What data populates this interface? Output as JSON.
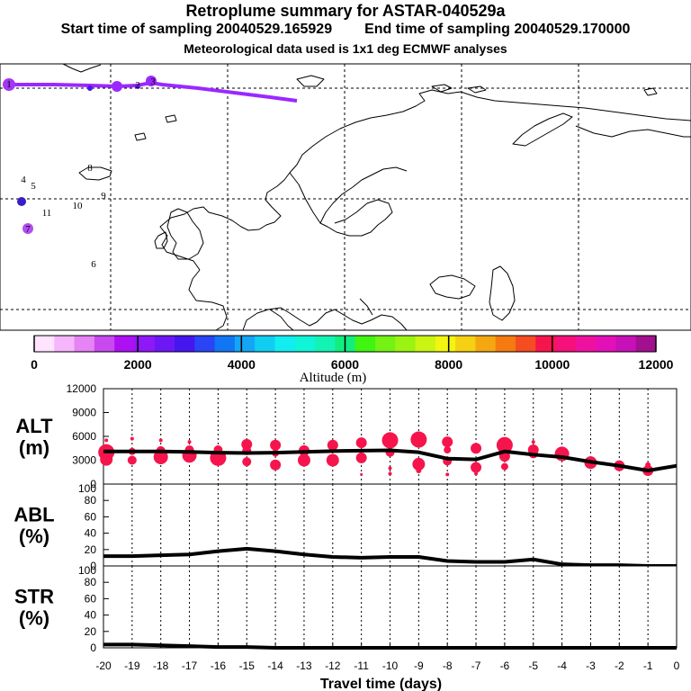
{
  "header": {
    "title": "Retroplume summary for ASTAR-040529a",
    "start_label": "Start time of sampling 20040529.165929",
    "end_label": "End time of sampling 20040529.170000",
    "met_label": "Meteorological data used is 1x1 deg ECMWF analyses"
  },
  "map": {
    "cluster_labels": [
      "4",
      "5",
      "11",
      "10",
      "9",
      "8",
      "6",
      "7",
      "1",
      "2",
      "3"
    ],
    "track_color": "#9a28ff",
    "ocean_color": "#ffffff",
    "coast_color": "#000000"
  },
  "colorbar": {
    "colors": [
      "#ffe3ff",
      "#f5b6fb",
      "#e683f5",
      "#c949f0",
      "#ad10f3",
      "#8f18f7",
      "#6d17f5",
      "#4616ef",
      "#2a45f5",
      "#1176f3",
      "#14a6f5",
      "#10cdf2",
      "#12edf0",
      "#10f5d7",
      "#13f3b3",
      "#11ee80",
      "#3ff511",
      "#73f213",
      "#9bf311",
      "#c8f511",
      "#f1f511",
      "#f5d111",
      "#f5a711",
      "#f57b11",
      "#f54c22",
      "#f5154c",
      "#f5107a",
      "#f010a0",
      "#e310b8",
      "#c810b8",
      "#a2108f"
    ],
    "tick_labels": [
      "0",
      "2000",
      "4000",
      "6000",
      "8000",
      "10000",
      "12000"
    ],
    "axis_label": "Altitude (m)"
  },
  "chart_data": [
    {
      "type": "line",
      "id": "alt",
      "ylabel": "ALT\n(m)",
      "ylabel_lines": [
        "ALT",
        "(m)"
      ],
      "ylim": [
        0,
        12000
      ],
      "yticks": [
        0,
        3000,
        6000,
        9000,
        12000
      ],
      "x": [
        -20,
        -19,
        -18,
        -17,
        -16,
        -15,
        -14,
        -13,
        -12,
        -11,
        -10,
        -9,
        -8,
        -7,
        -6,
        -5,
        -4,
        -3,
        -2,
        -1,
        0
      ],
      "series": [
        {
          "name": "mean altitude",
          "color": "#000000",
          "values": [
            4100,
            4100,
            4100,
            4050,
            3950,
            3900,
            3950,
            4050,
            4150,
            4200,
            4250,
            4000,
            3200,
            3100,
            4100,
            3700,
            3400,
            2800,
            2300,
            1700,
            2300
          ]
        }
      ],
      "scatter": {
        "name": "cluster altitudes",
        "color": "#f5154c",
        "points": [
          {
            "x": -19.9,
            "y": 4000,
            "s": 9
          },
          {
            "x": -19.9,
            "y": 3100,
            "s": 7
          },
          {
            "x": -19.9,
            "y": 5500,
            "s": 2
          },
          {
            "x": -19.0,
            "y": 4100,
            "s": 4
          },
          {
            "x": -19.0,
            "y": 3000,
            "s": 5
          },
          {
            "x": -19.0,
            "y": 5700,
            "s": 2
          },
          {
            "x": -18.0,
            "y": 3400,
            "s": 8
          },
          {
            "x": -18.0,
            "y": 4200,
            "s": 5
          },
          {
            "x": -18.0,
            "y": 5500,
            "s": 2
          },
          {
            "x": -17.0,
            "y": 3600,
            "s": 8
          },
          {
            "x": -17.0,
            "y": 4300,
            "s": 5
          },
          {
            "x": -17.0,
            "y": 5300,
            "s": 2
          },
          {
            "x": -16.0,
            "y": 3300,
            "s": 9
          },
          {
            "x": -16.0,
            "y": 4300,
            "s": 5
          },
          {
            "x": -15.0,
            "y": 5000,
            "s": 6
          },
          {
            "x": -15.0,
            "y": 4200,
            "s": 5
          },
          {
            "x": -15.0,
            "y": 2800,
            "s": 5
          },
          {
            "x": -14.0,
            "y": 4900,
            "s": 6
          },
          {
            "x": -14.0,
            "y": 2400,
            "s": 6
          },
          {
            "x": -14.0,
            "y": 3900,
            "s": 4
          },
          {
            "x": -13.0,
            "y": 4200,
            "s": 6
          },
          {
            "x": -13.0,
            "y": 3000,
            "s": 7
          },
          {
            "x": -12.0,
            "y": 4900,
            "s": 6
          },
          {
            "x": -12.0,
            "y": 3000,
            "s": 7
          },
          {
            "x": -11.0,
            "y": 5200,
            "s": 6
          },
          {
            "x": -11.0,
            "y": 3300,
            "s": 6
          },
          {
            "x": -11.0,
            "y": 1200,
            "s": 1.5
          },
          {
            "x": -10.0,
            "y": 5500,
            "s": 9
          },
          {
            "x": -10.0,
            "y": 4000,
            "s": 5
          },
          {
            "x": -10.0,
            "y": 2000,
            "s": 2
          },
          {
            "x": -10.0,
            "y": 1300,
            "s": 2
          },
          {
            "x": -9.0,
            "y": 5600,
            "s": 9
          },
          {
            "x": -9.0,
            "y": 2500,
            "s": 7
          },
          {
            "x": -9.0,
            "y": 1700,
            "s": 3
          },
          {
            "x": -8.0,
            "y": 5300,
            "s": 6
          },
          {
            "x": -8.0,
            "y": 4300,
            "s": 4
          },
          {
            "x": -8.0,
            "y": 2900,
            "s": 5
          },
          {
            "x": -8.0,
            "y": 1200,
            "s": 2
          },
          {
            "x": -7.0,
            "y": 4500,
            "s": 6
          },
          {
            "x": -7.0,
            "y": 2100,
            "s": 6
          },
          {
            "x": -7.0,
            "y": 1300,
            "s": 2
          },
          {
            "x": -6.0,
            "y": 4900,
            "s": 9
          },
          {
            "x": -6.0,
            "y": 3500,
            "s": 6
          },
          {
            "x": -6.0,
            "y": 2200,
            "s": 4
          },
          {
            "x": -5.0,
            "y": 4300,
            "s": 6
          },
          {
            "x": -5.0,
            "y": 3800,
            "s": 5
          },
          {
            "x": -5.0,
            "y": 5300,
            "s": 2
          },
          {
            "x": -4.0,
            "y": 3800,
            "s": 8
          },
          {
            "x": -3.0,
            "y": 2700,
            "s": 7
          },
          {
            "x": -2.0,
            "y": 2300,
            "s": 6
          },
          {
            "x": -1.0,
            "y": 1700,
            "s": 6
          },
          {
            "x": -1.0,
            "y": 2400,
            "s": 3
          }
        ]
      }
    },
    {
      "type": "line",
      "id": "abl",
      "ylabel": "ABL\n(%)",
      "ylabel_lines": [
        "ABL",
        "(%)"
      ],
      "ylim": [
        0,
        100
      ],
      "yticks": [
        0,
        20,
        40,
        60,
        80,
        100
      ],
      "x": [
        -20,
        -19,
        -18,
        -17,
        -16,
        -15,
        -14,
        -13,
        -12,
        -11,
        -10,
        -9,
        -8,
        -7,
        -6,
        -5,
        -4,
        -3,
        -2,
        -1,
        0
      ],
      "series": [
        {
          "name": "ABL fraction",
          "color": "#000000",
          "values": [
            12,
            12,
            13,
            14,
            18,
            21,
            18,
            14,
            11,
            10,
            11,
            11,
            6,
            5,
            5,
            8,
            2,
            1,
            1,
            0,
            0
          ]
        }
      ]
    },
    {
      "type": "line",
      "id": "str",
      "ylabel": "STR\n(%)",
      "ylabel_lines": [
        "STR",
        "(%)"
      ],
      "ylim": [
        0,
        100
      ],
      "yticks": [
        0,
        20,
        40,
        60,
        80,
        100
      ],
      "xlabel": "Travel time (days)",
      "xticks": [
        -20,
        -19,
        -18,
        -17,
        -16,
        -15,
        -14,
        -13,
        -12,
        -11,
        -10,
        -9,
        -8,
        -7,
        -6,
        -5,
        -4,
        -3,
        -2,
        -1,
        0
      ],
      "x": [
        -20,
        -19,
        -18,
        -17,
        -16,
        -15,
        -14,
        -13,
        -12,
        -11,
        -10,
        -9,
        -8,
        -7,
        -6,
        -5,
        -4,
        -3,
        -2,
        -1,
        0
      ],
      "series": [
        {
          "name": "stratospheric fraction",
          "color": "#000000",
          "values": [
            4,
            4,
            3,
            2,
            1,
            1,
            0,
            0,
            0,
            0,
            0,
            0,
            0,
            0,
            0,
            0,
            0,
            0,
            0,
            0,
            0
          ]
        }
      ]
    }
  ]
}
